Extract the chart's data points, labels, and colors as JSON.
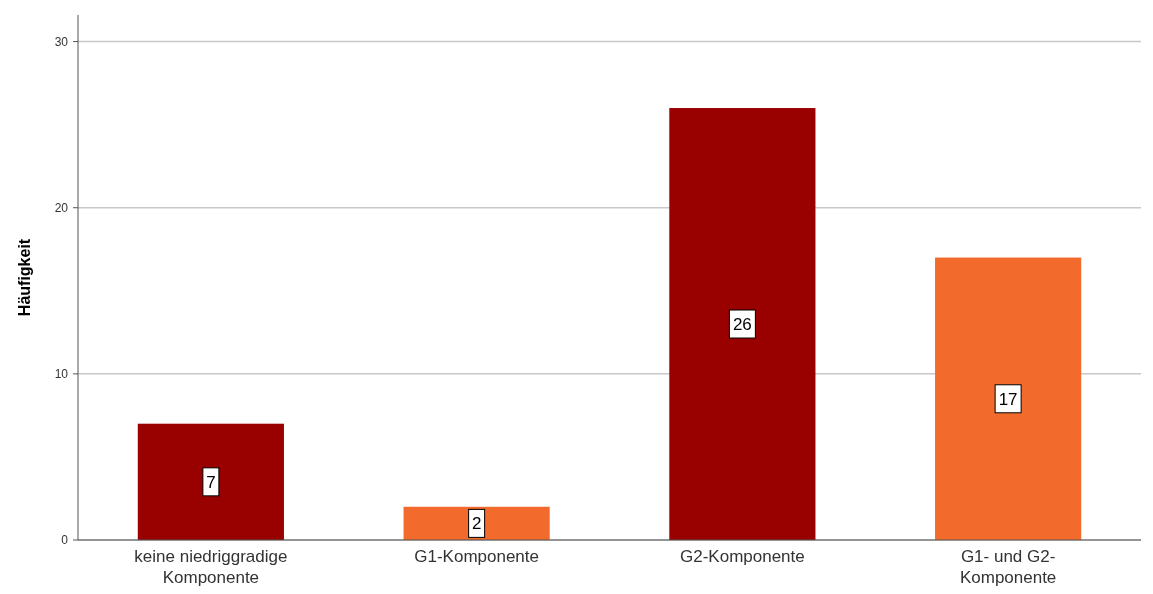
{
  "chart_data": {
    "type": "bar",
    "ylabel": "Häufigkeit",
    "categories": [
      "keine niedriggradige Komponente",
      "G1-Komponente",
      "G2-Komponente",
      "G1- und G2-Komponente"
    ],
    "values": [
      7,
      2,
      26,
      17
    ],
    "colors": [
      "#990000",
      "#f26b2c",
      "#990000",
      "#f26b2c"
    ],
    "ylim": [
      0,
      31.6
    ],
    "yticks": [
      0,
      10,
      20,
      30
    ],
    "grid": "y",
    "data_labels": true
  }
}
